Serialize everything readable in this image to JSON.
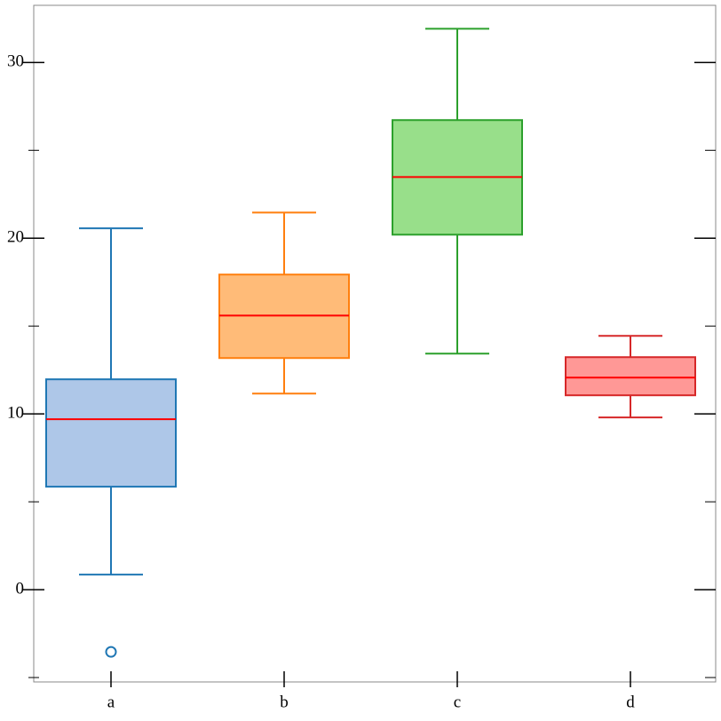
{
  "chart_data": {
    "type": "box",
    "categories": [
      "a",
      "b",
      "c",
      "d"
    ],
    "boxes": [
      {
        "whislo": 0.86,
        "q1": 5.86,
        "median": 9.7,
        "q3": 11.97,
        "whishi": 20.56,
        "fliers": [
          -3.54
        ]
      },
      {
        "whislo": 11.16,
        "q1": 13.18,
        "median": 15.6,
        "q3": 17.93,
        "whishi": 21.46,
        "fliers": []
      },
      {
        "whislo": 13.43,
        "q1": 20.2,
        "median": 23.48,
        "q3": 26.72,
        "whishi": 31.92,
        "fliers": []
      },
      {
        "whislo": 9.8,
        "q1": 11.06,
        "median": 12.07,
        "q3": 13.23,
        "whishi": 14.44,
        "fliers": []
      }
    ],
    "colors": [
      {
        "fill": "#aec7e8",
        "stroke": "#1f77b4"
      },
      {
        "fill": "#ffbb78",
        "stroke": "#ff7f0e"
      },
      {
        "fill": "#98df8a",
        "stroke": "#2ca02c"
      },
      {
        "fill": "#ff9896",
        "stroke": "#d62728"
      }
    ],
    "median_color": "#ff0000",
    "ylim": [
      -5.25,
      33.25
    ],
    "yticks": [
      0,
      10,
      20,
      30
    ],
    "yminorticks": [
      -5,
      5,
      15,
      25
    ]
  }
}
